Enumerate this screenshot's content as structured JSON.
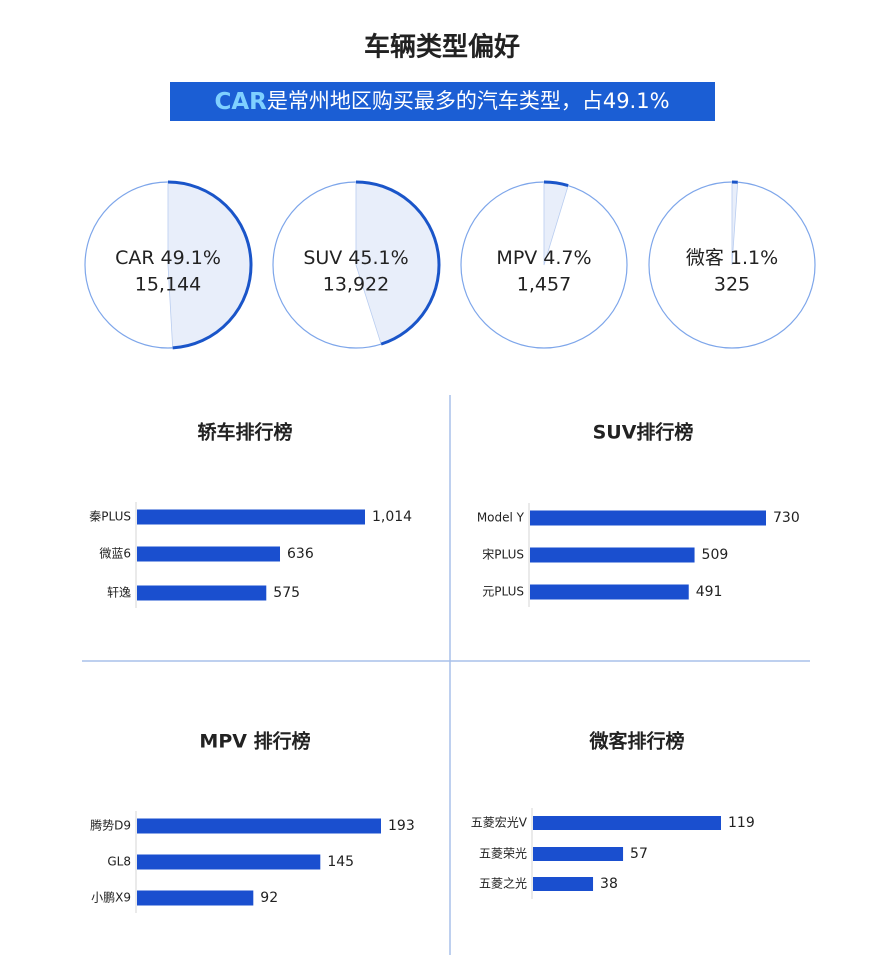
{
  "header": {
    "title": "车辆类型偏好",
    "subtitle_highlight": "CAR",
    "subtitle": "是常州地区购买最多的汽车类型，占49.1%"
  },
  "chart_data": [
    {
      "type": "pie",
      "categories": [
        "CAR",
        "SUV",
        "MPV",
        "微客"
      ],
      "values": [
        49.1,
        45.1,
        4.7,
        1.1
      ],
      "value_labels": [
        "49.1%",
        "45.1%",
        "4.7%",
        "1.1%"
      ],
      "counts": [
        15144,
        13922,
        1457,
        325
      ],
      "count_labels": [
        "15,144",
        "13,922",
        "1,457",
        "325"
      ],
      "color": "#1a55c9"
    },
    {
      "type": "hbar",
      "title": "轿车排行榜",
      "categories": [
        "秦PLUS",
        "微蓝6",
        "轩逸"
      ],
      "values": [
        1014,
        636,
        575
      ],
      "value_labels": [
        "1,014",
        "636",
        "575"
      ],
      "color": "#1a4fcf"
    },
    {
      "type": "hbar",
      "title": "SUV排行榜",
      "categories": [
        "Model Y",
        "宋PLUS",
        "元PLUS"
      ],
      "values": [
        730,
        509,
        491
      ],
      "color": "#1a4fcf"
    },
    {
      "type": "hbar",
      "title": "MPV 排行榜",
      "categories": [
        "腾势D9",
        "GL8",
        "小鹏X9"
      ],
      "values": [
        193,
        145,
        92
      ],
      "color": "#1a4fcf"
    },
    {
      "type": "hbar",
      "title": "微客排行榜",
      "categories": [
        "五菱宏光V",
        "五菱荣光",
        "五菱之光"
      ],
      "values": [
        119,
        57,
        38
      ],
      "color": "#1a4fcf"
    }
  ]
}
